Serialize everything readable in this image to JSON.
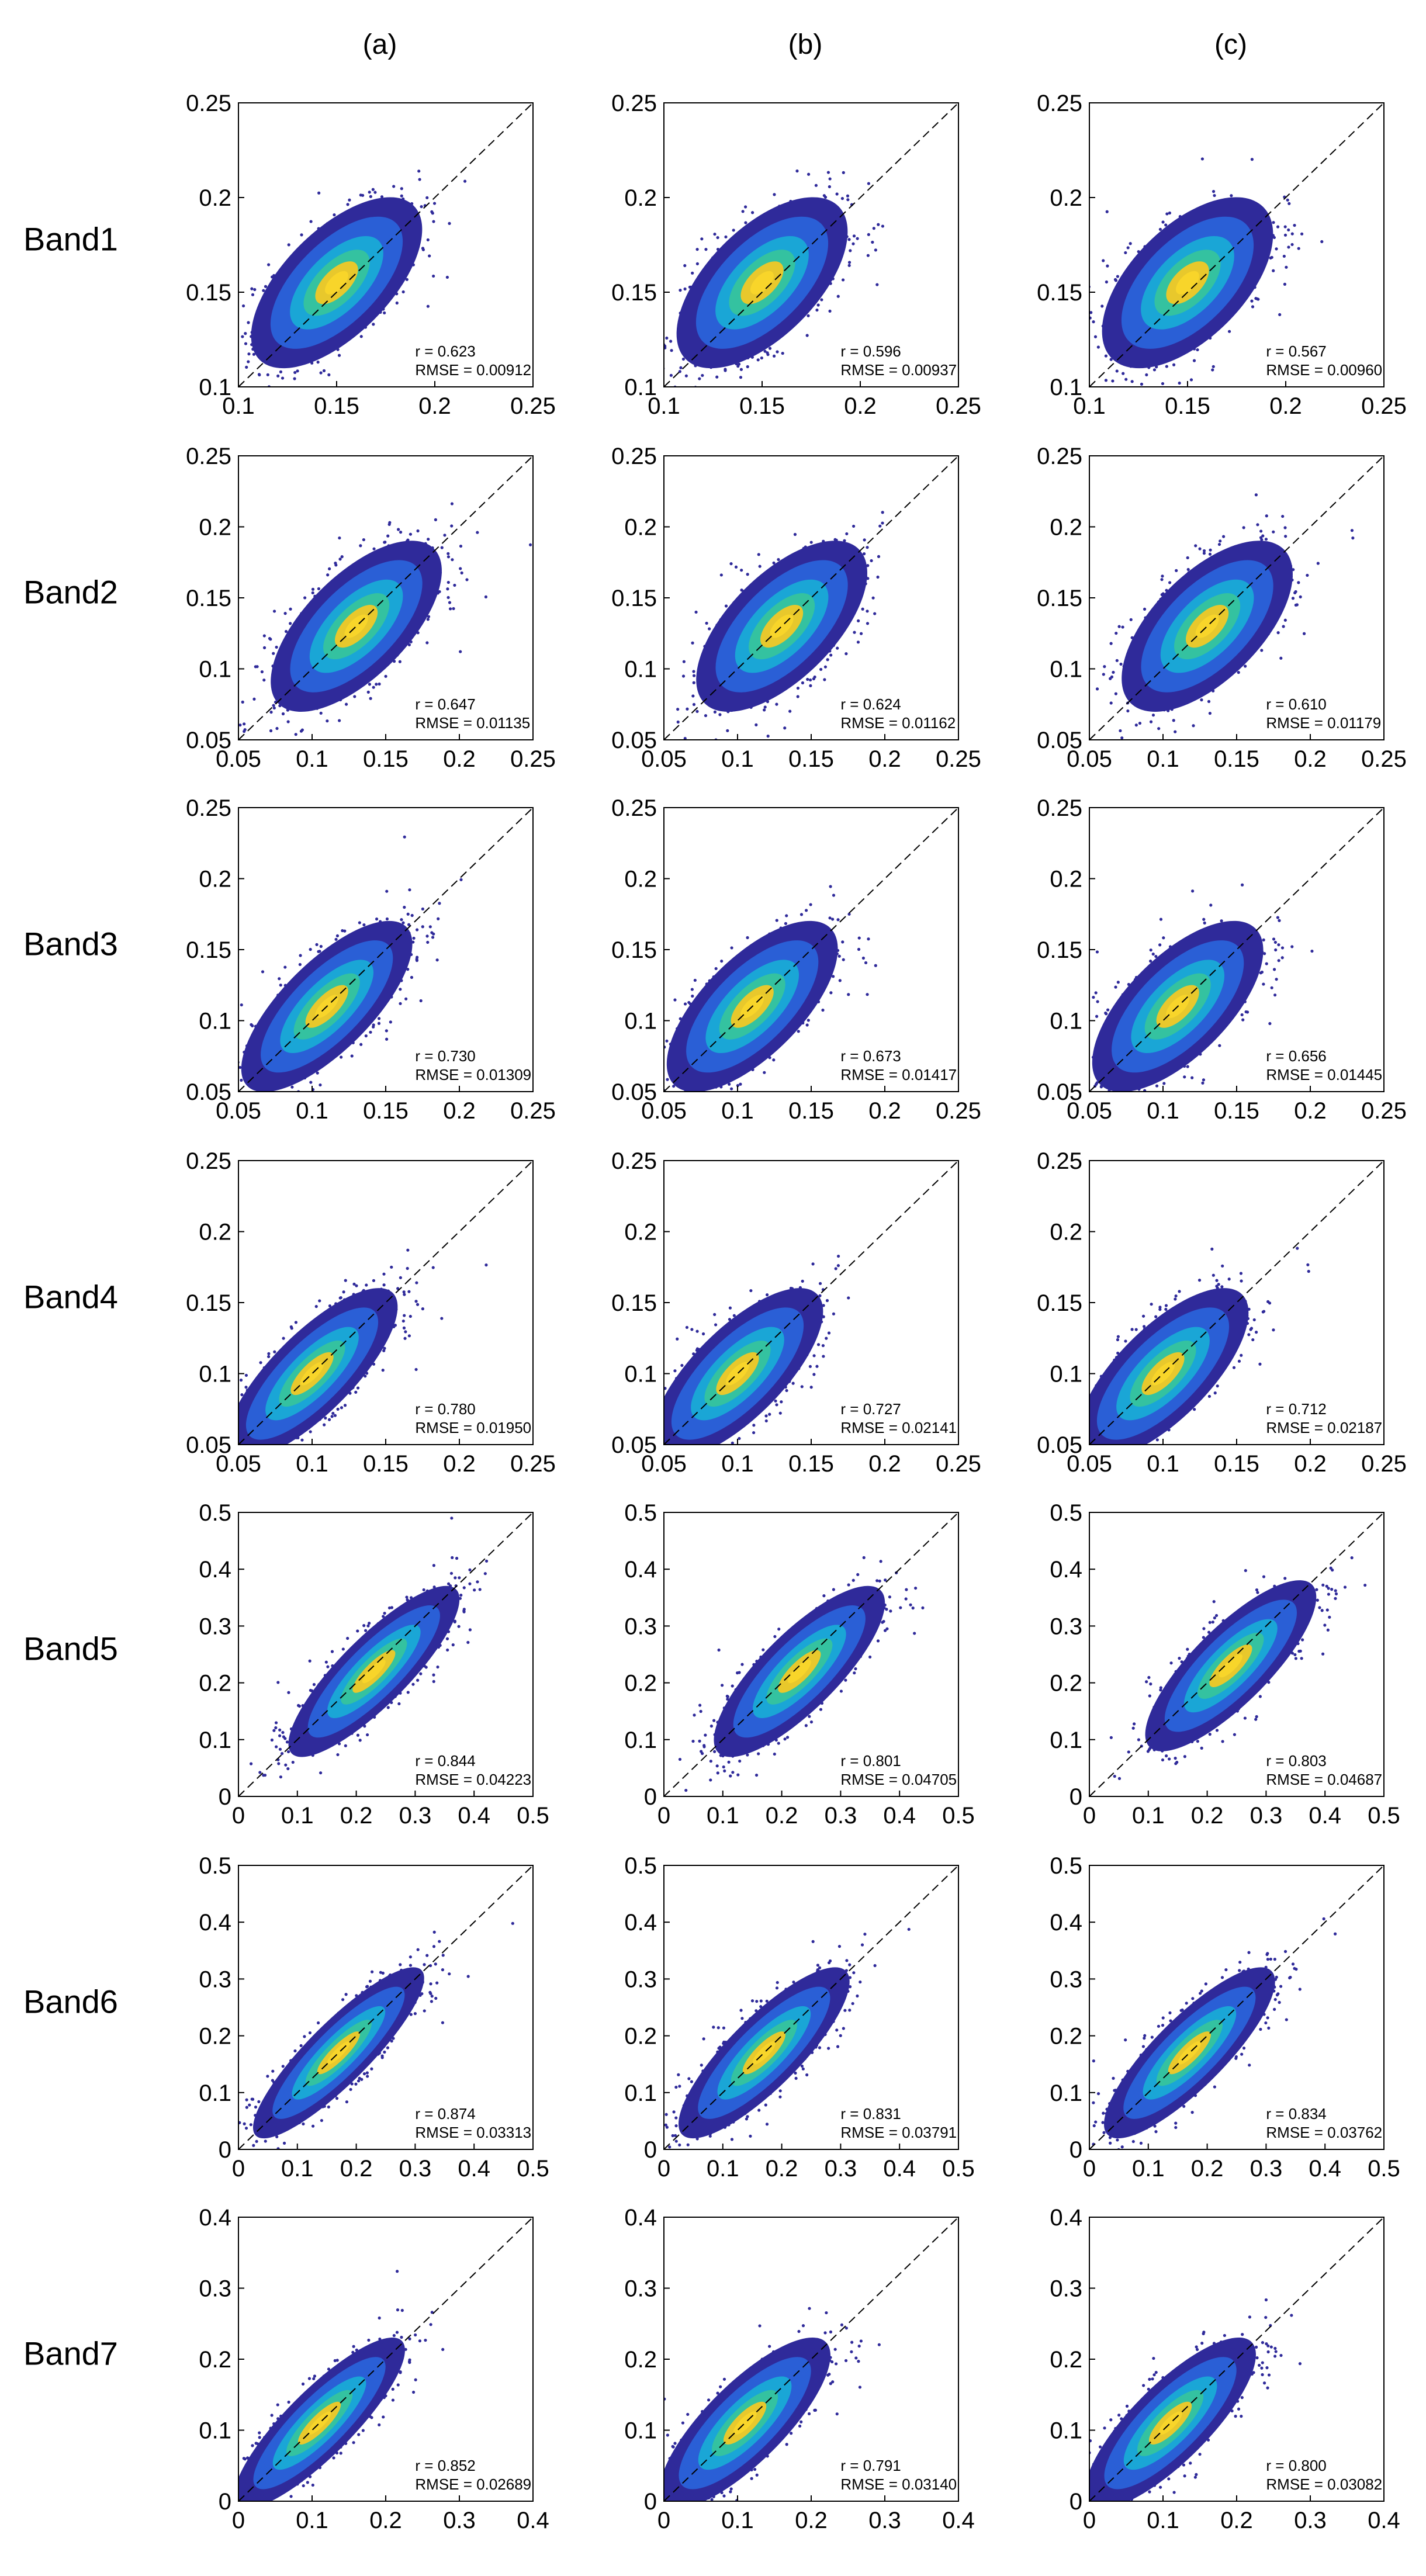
{
  "column_headers": [
    "(a)",
    "(b)",
    "(c)"
  ],
  "row_labels": [
    "Band1",
    "Band2",
    "Band3",
    "Band4",
    "Band5",
    "Band6",
    "Band7"
  ],
  "stat_labels": {
    "r": "r = ",
    "rmse": "RMSE = "
  },
  "colors": {
    "density_low": "#2f2a9a",
    "density_mid1": "#2a5fd6",
    "density_mid2": "#1aa6d6",
    "density_mid3": "#34c2a0",
    "density_high": "#e8c82c",
    "density_peak": "#f8d52a",
    "one_to_one_line": "#000000",
    "axis": "#000000"
  },
  "chart_data": [
    {
      "type": "scatter",
      "band": "Band1",
      "column": "(a)",
      "xlim": [
        0.1,
        0.25
      ],
      "ylim": [
        0.1,
        0.25
      ],
      "xticks": [
        "0.1",
        "0.15",
        "0.2",
        "0.25"
      ],
      "yticks": [
        "0.1",
        "0.15",
        "0.2",
        "0.25"
      ],
      "r": "0.623",
      "rmse": "0.00912",
      "center": [
        0.15,
        0.155
      ]
    },
    {
      "type": "scatter",
      "band": "Band1",
      "column": "(b)",
      "xlim": [
        0.1,
        0.25
      ],
      "ylim": [
        0.1,
        0.25
      ],
      "xticks": [
        "0.1",
        "0.15",
        "0.2",
        "0.25"
      ],
      "yticks": [
        "0.1",
        "0.15",
        "0.2",
        "0.25"
      ],
      "r": "0.596",
      "rmse": "0.00937",
      "center": [
        0.15,
        0.155
      ]
    },
    {
      "type": "scatter",
      "band": "Band1",
      "column": "(c)",
      "xlim": [
        0.1,
        0.25
      ],
      "ylim": [
        0.1,
        0.25
      ],
      "xticks": [
        "0.1",
        "0.15",
        "0.2",
        "0.25"
      ],
      "yticks": [
        "0.1",
        "0.15",
        "0.2",
        "0.25"
      ],
      "r": "0.567",
      "rmse": "0.00960",
      "center": [
        0.15,
        0.155
      ]
    },
    {
      "type": "scatter",
      "band": "Band2",
      "column": "(a)",
      "xlim": [
        0.05,
        0.25
      ],
      "ylim": [
        0.05,
        0.25
      ],
      "xticks": [
        "0.05",
        "0.1",
        "0.15",
        "0.2",
        "0.25"
      ],
      "yticks": [
        "0.05",
        "0.1",
        "0.15",
        "0.2",
        "0.25"
      ],
      "r": "0.647",
      "rmse": "0.01135",
      "center": [
        0.13,
        0.13
      ]
    },
    {
      "type": "scatter",
      "band": "Band2",
      "column": "(b)",
      "xlim": [
        0.05,
        0.25
      ],
      "ylim": [
        0.05,
        0.25
      ],
      "xticks": [
        "0.05",
        "0.1",
        "0.15",
        "0.2",
        "0.25"
      ],
      "yticks": [
        "0.05",
        "0.1",
        "0.15",
        "0.2",
        "0.25"
      ],
      "r": "0.624",
      "rmse": "0.01162",
      "center": [
        0.13,
        0.13
      ]
    },
    {
      "type": "scatter",
      "band": "Band2",
      "column": "(c)",
      "xlim": [
        0.05,
        0.25
      ],
      "ylim": [
        0.05,
        0.25
      ],
      "xticks": [
        "0.05",
        "0.1",
        "0.15",
        "0.2",
        "0.25"
      ],
      "yticks": [
        "0.05",
        "0.1",
        "0.15",
        "0.2",
        "0.25"
      ],
      "r": "0.610",
      "rmse": "0.01179",
      "center": [
        0.13,
        0.13
      ]
    },
    {
      "type": "scatter",
      "band": "Band3",
      "column": "(a)",
      "xlim": [
        0.05,
        0.25
      ],
      "ylim": [
        0.05,
        0.25
      ],
      "xticks": [
        "0.05",
        "0.1",
        "0.15",
        "0.2",
        "0.25"
      ],
      "yticks": [
        "0.05",
        "0.1",
        "0.15",
        "0.2",
        "0.25"
      ],
      "r": "0.730",
      "rmse": "0.01309",
      "center": [
        0.11,
        0.11
      ]
    },
    {
      "type": "scatter",
      "band": "Band3",
      "column": "(b)",
      "xlim": [
        0.05,
        0.25
      ],
      "ylim": [
        0.05,
        0.25
      ],
      "xticks": [
        "0.05",
        "0.1",
        "0.15",
        "0.2",
        "0.25"
      ],
      "yticks": [
        "0.05",
        "0.1",
        "0.15",
        "0.2",
        "0.25"
      ],
      "r": "0.673",
      "rmse": "0.01417",
      "center": [
        0.11,
        0.11
      ]
    },
    {
      "type": "scatter",
      "band": "Band3",
      "column": "(c)",
      "xlim": [
        0.05,
        0.25
      ],
      "ylim": [
        0.05,
        0.25
      ],
      "xticks": [
        "0.05",
        "0.1",
        "0.15",
        "0.2",
        "0.25"
      ],
      "yticks": [
        "0.05",
        "0.1",
        "0.15",
        "0.2",
        "0.25"
      ],
      "r": "0.656",
      "rmse": "0.01445",
      "center": [
        0.11,
        0.11
      ]
    },
    {
      "type": "scatter",
      "band": "Band4",
      "column": "(a)",
      "xlim": [
        0.05,
        0.25
      ],
      "ylim": [
        0.05,
        0.25
      ],
      "xticks": [
        "0.05",
        "0.1",
        "0.15",
        "0.2",
        "0.25"
      ],
      "yticks": [
        "0.05",
        "0.1",
        "0.15",
        "0.2",
        "0.25"
      ],
      "r": "0.780",
      "rmse": "0.01950",
      "center": [
        0.1,
        0.1
      ]
    },
    {
      "type": "scatter",
      "band": "Band4",
      "column": "(b)",
      "xlim": [
        0.05,
        0.25
      ],
      "ylim": [
        0.05,
        0.25
      ],
      "xticks": [
        "0.05",
        "0.1",
        "0.15",
        "0.2",
        "0.25"
      ],
      "yticks": [
        "0.05",
        "0.1",
        "0.15",
        "0.2",
        "0.25"
      ],
      "r": "0.727",
      "rmse": "0.02141",
      "center": [
        0.1,
        0.1
      ]
    },
    {
      "type": "scatter",
      "band": "Band4",
      "column": "(c)",
      "xlim": [
        0.05,
        0.25
      ],
      "ylim": [
        0.05,
        0.25
      ],
      "xticks": [
        "0.05",
        "0.1",
        "0.15",
        "0.2",
        "0.25"
      ],
      "yticks": [
        "0.05",
        "0.1",
        "0.15",
        "0.2",
        "0.25"
      ],
      "r": "0.712",
      "rmse": "0.02187",
      "center": [
        0.1,
        0.1
      ]
    },
    {
      "type": "scatter",
      "band": "Band5",
      "column": "(a)",
      "xlim": [
        0,
        0.5
      ],
      "ylim": [
        0,
        0.5
      ],
      "xticks": [
        "0",
        "0.1",
        "0.2",
        "0.3",
        "0.4",
        "0.5"
      ],
      "yticks": [
        "0",
        "0.1",
        "0.2",
        "0.3",
        "0.4",
        "0.5"
      ],
      "r": "0.844",
      "rmse": "0.04223",
      "center": [
        0.23,
        0.22
      ]
    },
    {
      "type": "scatter",
      "band": "Band5",
      "column": "(b)",
      "xlim": [
        0,
        0.5
      ],
      "ylim": [
        0,
        0.5
      ],
      "xticks": [
        "0",
        "0.1",
        "0.2",
        "0.3",
        "0.4",
        "0.5"
      ],
      "yticks": [
        "0",
        "0.1",
        "0.2",
        "0.3",
        "0.4",
        "0.5"
      ],
      "r": "0.801",
      "rmse": "0.04705",
      "center": [
        0.23,
        0.22
      ]
    },
    {
      "type": "scatter",
      "band": "Band5",
      "column": "(c)",
      "xlim": [
        0,
        0.5
      ],
      "ylim": [
        0,
        0.5
      ],
      "xticks": [
        "0",
        "0.1",
        "0.2",
        "0.3",
        "0.4",
        "0.5"
      ],
      "yticks": [
        "0",
        "0.1",
        "0.2",
        "0.3",
        "0.4",
        "0.5"
      ],
      "r": "0.803",
      "rmse": "0.04687",
      "center": [
        0.24,
        0.23
      ]
    },
    {
      "type": "scatter",
      "band": "Band6",
      "column": "(a)",
      "xlim": [
        0,
        0.5
      ],
      "ylim": [
        0,
        0.5
      ],
      "xticks": [
        "0",
        "0.1",
        "0.2",
        "0.3",
        "0.4",
        "0.5"
      ],
      "yticks": [
        "0",
        "0.1",
        "0.2",
        "0.3",
        "0.4",
        "0.5"
      ],
      "r": "0.874",
      "rmse": "0.03313",
      "center": [
        0.17,
        0.17
      ]
    },
    {
      "type": "scatter",
      "band": "Band6",
      "column": "(b)",
      "xlim": [
        0,
        0.5
      ],
      "ylim": [
        0,
        0.5
      ],
      "xticks": [
        "0",
        "0.1",
        "0.2",
        "0.3",
        "0.4",
        "0.5"
      ],
      "yticks": [
        "0",
        "0.1",
        "0.2",
        "0.3",
        "0.4",
        "0.5"
      ],
      "r": "0.831",
      "rmse": "0.03791",
      "center": [
        0.17,
        0.17
      ]
    },
    {
      "type": "scatter",
      "band": "Band6",
      "column": "(c)",
      "xlim": [
        0,
        0.5
      ],
      "ylim": [
        0,
        0.5
      ],
      "xticks": [
        "0",
        "0.1",
        "0.2",
        "0.3",
        "0.4",
        "0.5"
      ],
      "yticks": [
        "0",
        "0.1",
        "0.2",
        "0.3",
        "0.4",
        "0.5"
      ],
      "r": "0.834",
      "rmse": "0.03762",
      "center": [
        0.17,
        0.17
      ]
    },
    {
      "type": "scatter",
      "band": "Band7",
      "column": "(a)",
      "xlim": [
        0,
        0.4
      ],
      "ylim": [
        0,
        0.4
      ],
      "xticks": [
        "0",
        "0.1",
        "0.2",
        "0.3",
        "0.4"
      ],
      "yticks": [
        "0",
        "0.1",
        "0.2",
        "0.3",
        "0.4"
      ],
      "r": "0.852",
      "rmse": "0.02689",
      "center": [
        0.11,
        0.11
      ]
    },
    {
      "type": "scatter",
      "band": "Band7",
      "column": "(b)",
      "xlim": [
        0,
        0.4
      ],
      "ylim": [
        0,
        0.4
      ],
      "xticks": [
        "0",
        "0.1",
        "0.2",
        "0.3",
        "0.4"
      ],
      "yticks": [
        "0",
        "0.1",
        "0.2",
        "0.3",
        "0.4"
      ],
      "r": "0.791",
      "rmse": "0.03140",
      "center": [
        0.11,
        0.11
      ]
    },
    {
      "type": "scatter",
      "band": "Band7",
      "column": "(c)",
      "xlim": [
        0,
        0.4
      ],
      "ylim": [
        0,
        0.4
      ],
      "xticks": [
        "0",
        "0.1",
        "0.2",
        "0.3",
        "0.4"
      ],
      "yticks": [
        "0",
        "0.1",
        "0.2",
        "0.3",
        "0.4"
      ],
      "r": "0.800",
      "rmse": "0.03082",
      "center": [
        0.11,
        0.11
      ]
    }
  ]
}
